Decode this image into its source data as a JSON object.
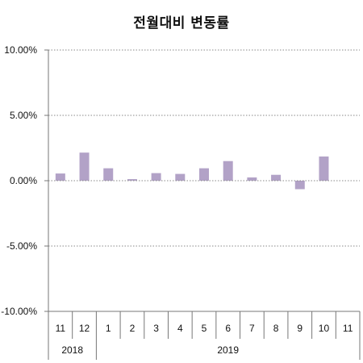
{
  "chart_data": {
    "type": "bar",
    "title": "전월대비 변동률",
    "xlabel": "",
    "ylabel": "",
    "categories": [
      "11",
      "12",
      "1",
      "2",
      "3",
      "4",
      "5",
      "6",
      "7",
      "8",
      "9",
      "10",
      "11"
    ],
    "groups": [
      {
        "label": "2018",
        "span": 2
      },
      {
        "label": "2019",
        "span": 11
      }
    ],
    "values": [
      0.55,
      2.15,
      0.95,
      0.12,
      0.58,
      0.52,
      0.95,
      1.5,
      0.25,
      0.45,
      -0.65,
      1.85,
      0.0
    ],
    "ylim": [
      -10,
      10
    ],
    "yticks": [
      {
        "value": 10,
        "label": "10.00%"
      },
      {
        "value": 5,
        "label": "5.00%"
      },
      {
        "value": 0,
        "label": "0.00%"
      },
      {
        "value": -5,
        "label": "-5.00%"
      },
      {
        "value": -10,
        "label": "-10.00%"
      }
    ],
    "grid": true,
    "legend": "none",
    "bar_color": "#b2a2c7",
    "grid_color": "#888888",
    "axis_color": "#777777"
  }
}
